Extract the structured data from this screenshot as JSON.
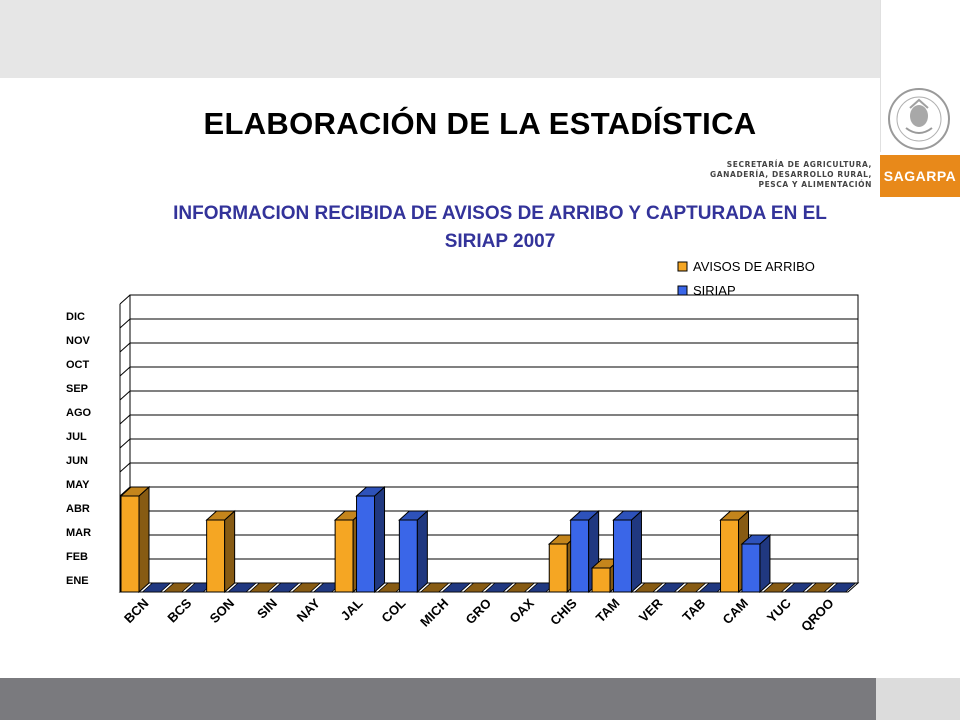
{
  "header": {
    "title": "ELABORACIÓN DE LA ESTADÍSTICA",
    "subtitle_line1": "INFORMACION RECIBIDA DE AVISOS DE ARRIBO Y CAPTURADA EN EL",
    "subtitle_line2": "SIRIAP 2007"
  },
  "logo": {
    "ministry_line1": "SECRETARÍA DE AGRICULTURA,",
    "ministry_line2": "GANADERÍA, DESARROLLO RURAL,",
    "ministry_line3": "PESCA Y ALIMENTACIÓN",
    "brand": "SAGARPA",
    "brand_color": "#e8891a",
    "seal_icon": "mexican-coat-of-arms-seal"
  },
  "chart_data": {
    "type": "bar",
    "categories": [
      "BCN",
      "BCS",
      "SON",
      "SIN",
      "NAY",
      "JAL",
      "COL",
      "MICH",
      "GRO",
      "OAX",
      "CHIS",
      "TAM",
      "VER",
      "TAB",
      "CAM",
      "YUC",
      "QROO"
    ],
    "y_categories": [
      "ENE",
      "FEB",
      "MAR",
      "ABR",
      "MAY",
      "JUN",
      "JUL",
      "AGO",
      "SEP",
      "OCT",
      "NOV",
      "DIC"
    ],
    "ylim": [
      0,
      12
    ],
    "grid": true,
    "legend_position": "top-right",
    "series": [
      {
        "name": "AVISOS DE ARRIBO",
        "color": "#f5a623",
        "values": [
          4,
          0,
          3,
          0,
          0,
          3,
          0,
          0,
          0,
          0,
          2,
          1,
          0,
          0,
          3,
          0,
          0
        ]
      },
      {
        "name": "SIRIAP",
        "color": "#3a66e8",
        "values": [
          0,
          0,
          0,
          0,
          0,
          4,
          3,
          0,
          0,
          0,
          3,
          3,
          0,
          0,
          2,
          0,
          0
        ]
      }
    ]
  }
}
